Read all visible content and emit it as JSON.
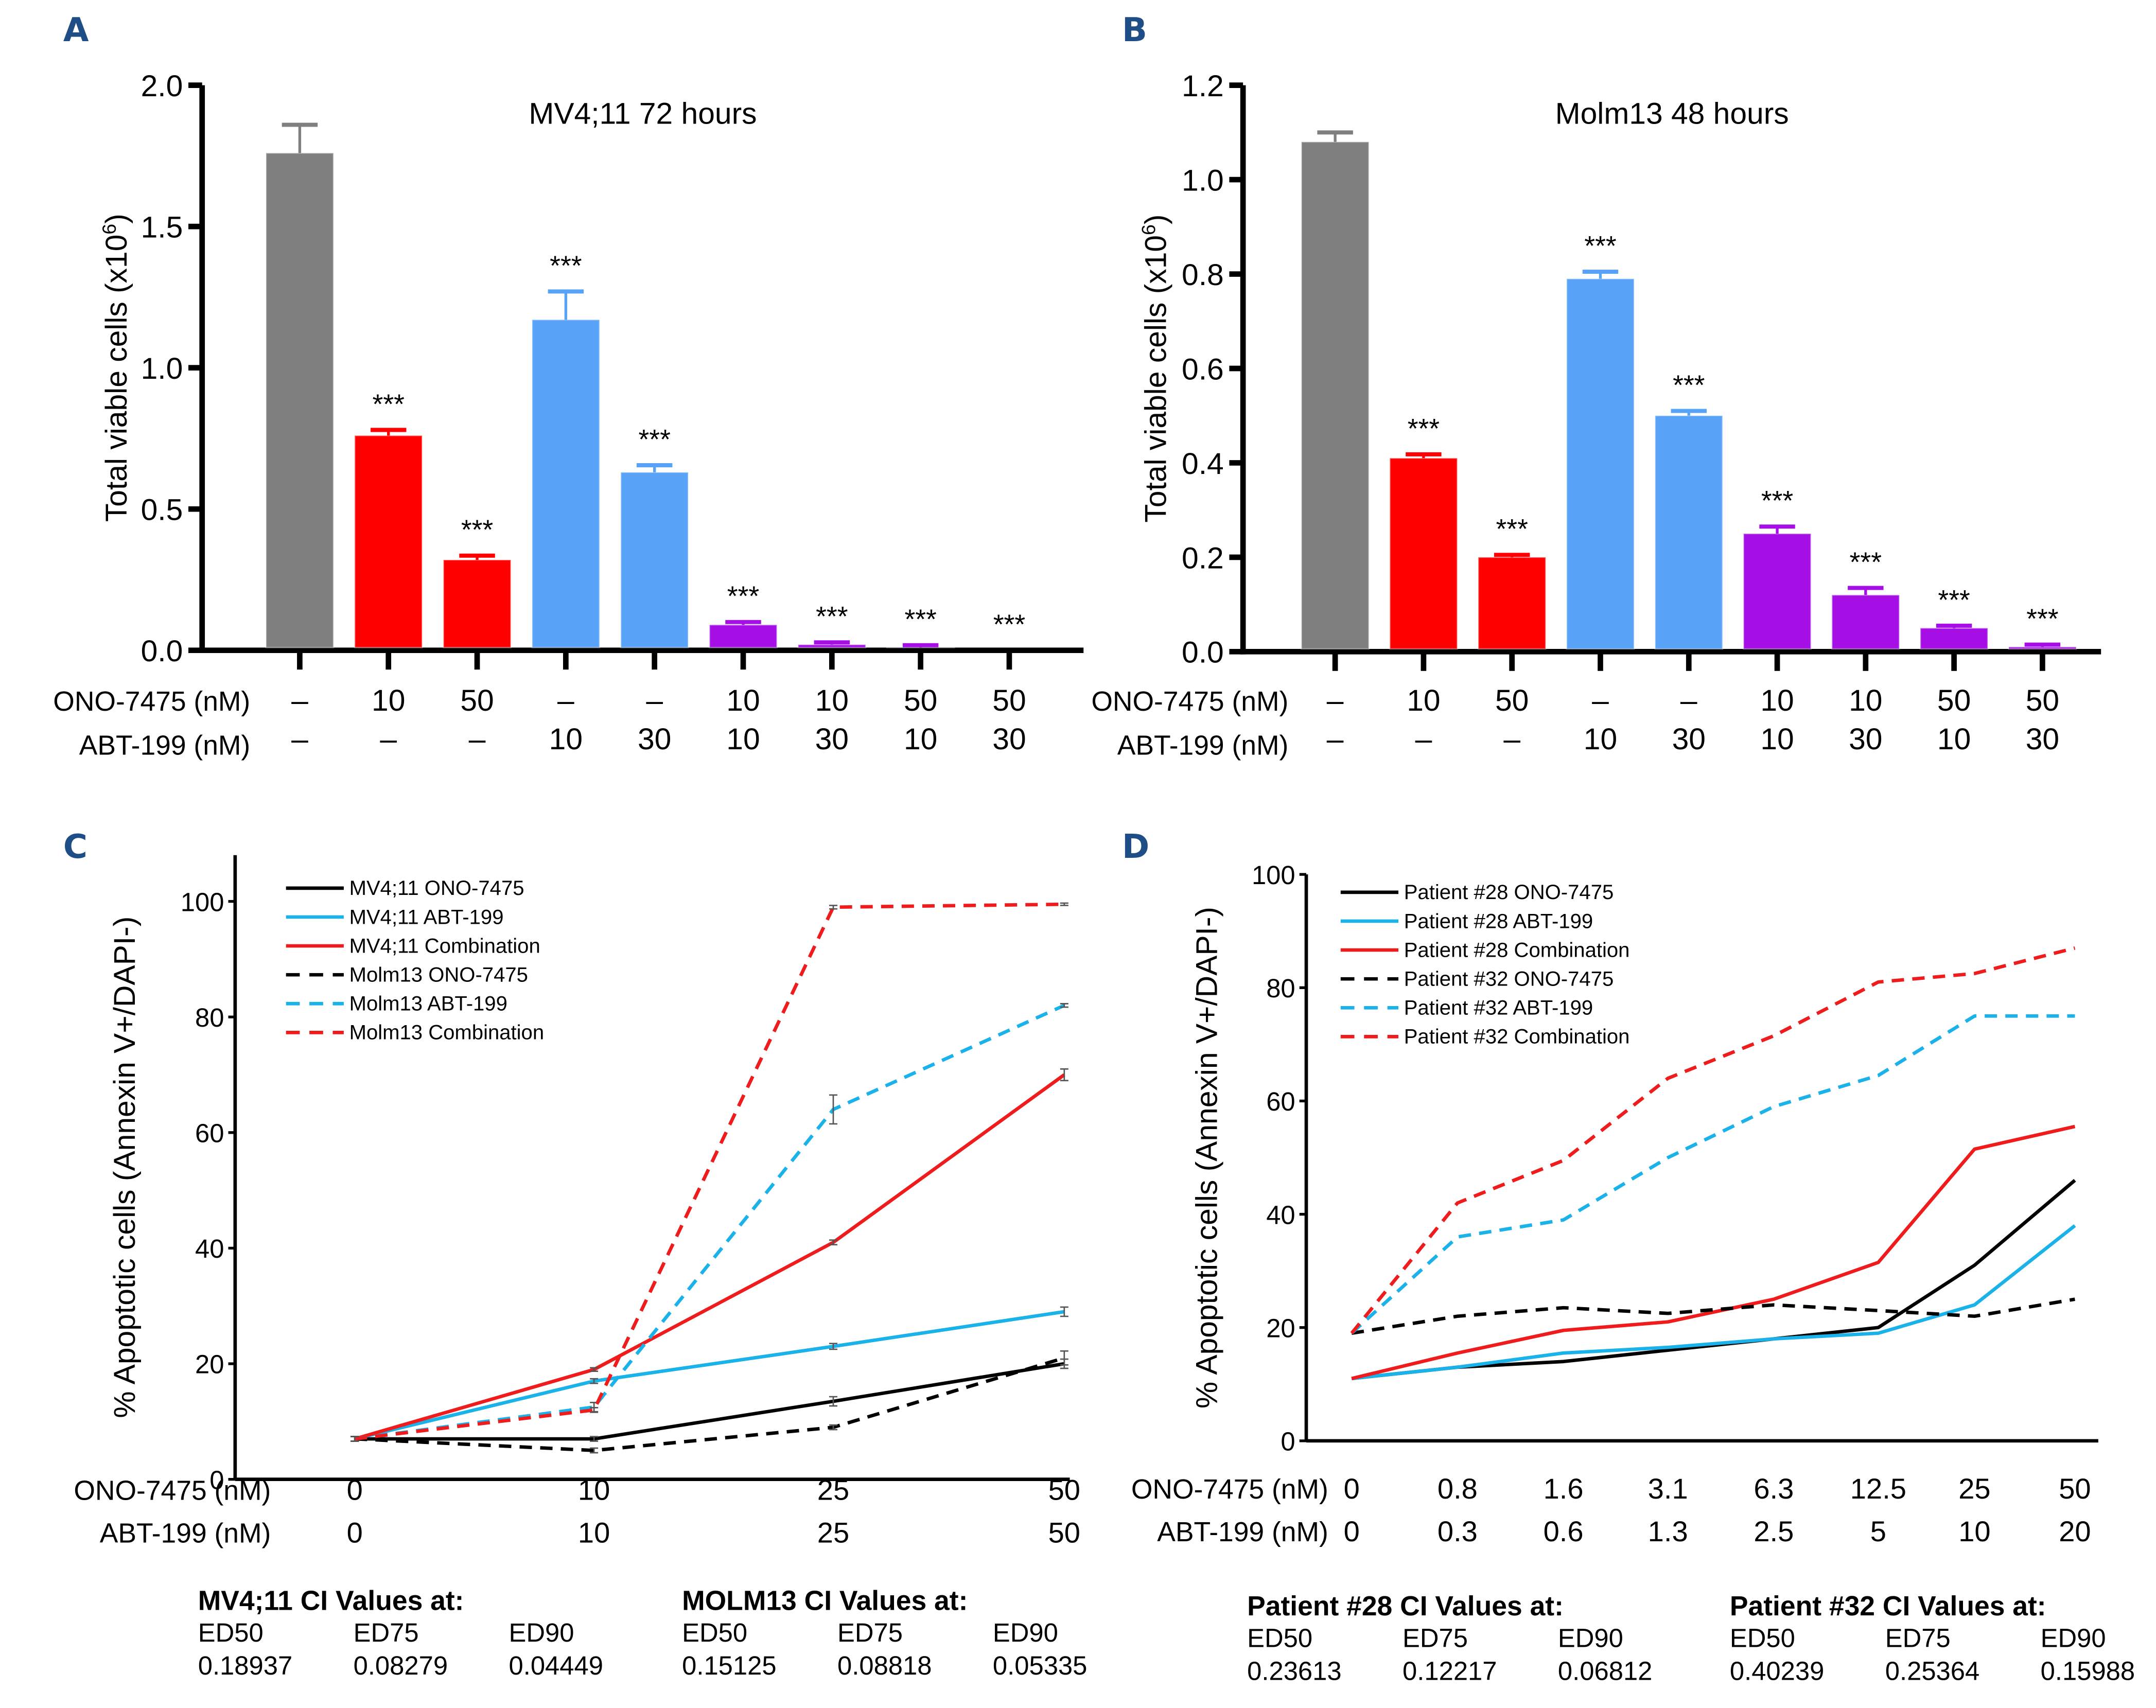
{
  "chart_data": [
    {
      "panel": "A",
      "type": "bar",
      "title": "MV4;11 72 hours",
      "ylabel": "Total viable cells (x10^6)",
      "ylim": [
        0,
        2.0
      ],
      "yticks": [
        "0.0",
        "0.5",
        "1.0",
        "1.5",
        "2.0"
      ],
      "ytick_values": [
        0,
        0.5,
        1.0,
        1.5,
        2.0
      ],
      "row_labels": [
        "ONO-7475 (nM)",
        "ABT-199 (nM)"
      ],
      "ono": [
        "–",
        "10",
        "50",
        "–",
        "–",
        "10",
        "10",
        "50",
        "50"
      ],
      "abt": [
        "–",
        "–",
        "–",
        "10",
        "30",
        "10",
        "30",
        "10",
        "30"
      ],
      "values": [
        1.76,
        0.76,
        0.32,
        1.17,
        0.63,
        0.09,
        0.02,
        0.01,
        0.0
      ],
      "errors": [
        0.1,
        0.02,
        0.015,
        0.1,
        0.025,
        0.01,
        0.008,
        0.008,
        0.0
      ],
      "colors": [
        "#7f7f7f",
        "#ff0000",
        "#ff0000",
        "#58a2f8",
        "#58a2f8",
        "#a60ee6",
        "#a60ee6",
        "#a60ee6",
        "#a60ee6"
      ],
      "significance": [
        "",
        "***",
        "***",
        "***",
        "***",
        "***",
        "***",
        "***",
        "***"
      ]
    },
    {
      "panel": "B",
      "type": "bar",
      "title": "Molm13 48 hours",
      "ylabel": "Total viable cells (x10^6)",
      "ylim": [
        0,
        1.2
      ],
      "yticks": [
        "0.0",
        "0.2",
        "0.4",
        "0.6",
        "0.8",
        "1.0",
        "1.2"
      ],
      "ytick_values": [
        0,
        0.2,
        0.4,
        0.6,
        0.8,
        1.0,
        1.2
      ],
      "row_labels": [
        "ONO-7475 (nM)",
        "ABT-199 (nM)"
      ],
      "ono": [
        "–",
        "10",
        "50",
        "–",
        "–",
        "10",
        "10",
        "50",
        "50"
      ],
      "abt": [
        "–",
        "–",
        "–",
        "10",
        "30",
        "10",
        "30",
        "10",
        "30"
      ],
      "values": [
        1.08,
        0.41,
        0.2,
        0.79,
        0.5,
        0.25,
        0.12,
        0.05,
        0.01
      ],
      "errors": [
        0.02,
        0.008,
        0.005,
        0.015,
        0.01,
        0.015,
        0.015,
        0.005,
        0.005
      ],
      "colors": [
        "#7f7f7f",
        "#ff0000",
        "#ff0000",
        "#58a2f8",
        "#58a2f8",
        "#a60ee6",
        "#a60ee6",
        "#a60ee6",
        "#a60ee6"
      ],
      "significance": [
        "",
        "***",
        "***",
        "***",
        "***",
        "***",
        "***",
        "***",
        "***"
      ]
    },
    {
      "panel": "C",
      "type": "line",
      "ylabel": "% Apoptotic cells (Annexin V+/DAPI-)",
      "ylim": [
        0,
        108
      ],
      "yticks": [
        "0",
        "20",
        "40",
        "60",
        "80",
        "100"
      ],
      "ytick_values": [
        0,
        20,
        40,
        60,
        80,
        100
      ],
      "row_labels": [
        "ONO-7475 (nM)",
        "ABT-199 (nM)"
      ],
      "x_ono": [
        "0",
        "10",
        "25",
        "50"
      ],
      "x_abt": [
        "0",
        "10",
        "25",
        "50"
      ],
      "x": [
        0,
        10,
        25,
        50
      ],
      "legend": "top-left",
      "series": [
        {
          "name": "MV4;11 ONO-7475",
          "color": "#000000",
          "dashed": false,
          "values": [
            7,
            7,
            13.5,
            20
          ],
          "errors": [
            0.4,
            0.4,
            0.8,
            0.8
          ]
        },
        {
          "name": "MV4;11 ABT-199",
          "color": "#1ab2e8",
          "dashed": false,
          "values": [
            7,
            17,
            23,
            29
          ],
          "errors": [
            0.4,
            0.4,
            0.5,
            0.8
          ]
        },
        {
          "name": "MV4;11 Combination",
          "color": "#ee1c1c",
          "dashed": false,
          "values": [
            7,
            19,
            41,
            70
          ],
          "errors": [
            0.4,
            0.3,
            0.4,
            1.0
          ]
        },
        {
          "name": "Molm13 ONO-7475",
          "color": "#000000",
          "dashed": true,
          "values": [
            7,
            5,
            9,
            21
          ],
          "errors": [
            0.4,
            0.4,
            0.4,
            1.2
          ]
        },
        {
          "name": "Molm13 ABT-199",
          "color": "#1ab2e8",
          "dashed": true,
          "values": [
            7,
            12.5,
            64,
            82
          ],
          "errors": [
            0.4,
            0.8,
            2.5,
            0.3
          ]
        },
        {
          "name": "Molm13 Combination",
          "color": "#ee1c1c",
          "dashed": true,
          "values": [
            7,
            12,
            99,
            99.5
          ],
          "errors": [
            0.4,
            0.4,
            0.3,
            0.2
          ]
        }
      ]
    },
    {
      "panel": "D",
      "type": "line",
      "ylabel": "% Apoptotic cells (Annexin V+/DAPI-)",
      "ylim": [
        0,
        100
      ],
      "yticks": [
        "0",
        "20",
        "40",
        "60",
        "80",
        "100"
      ],
      "ytick_values": [
        0,
        20,
        40,
        60,
        80,
        100
      ],
      "row_labels": [
        "ONO-7475 (nM)",
        "ABT-199 (nM)"
      ],
      "x_ono": [
        "0",
        "0.8",
        "1.6",
        "3.1",
        "6.3",
        "12.5",
        "25",
        "50"
      ],
      "x_abt": [
        "0",
        "0.3",
        "0.6",
        "1.3",
        "2.5",
        "5",
        "10",
        "20"
      ],
      "legend": "top-left",
      "series": [
        {
          "name": "Patient #28 ONO-7475",
          "color": "#000000",
          "dashed": false,
          "values": [
            11,
            13,
            14,
            16,
            18,
            20,
            31,
            46
          ]
        },
        {
          "name": "Patient #28 ABT-199",
          "color": "#1ab2e8",
          "dashed": false,
          "values": [
            11,
            13,
            15.5,
            16.5,
            18,
            19,
            24,
            38
          ]
        },
        {
          "name": "Patient #28 Combination",
          "color": "#ee1c1c",
          "dashed": false,
          "values": [
            11,
            15.5,
            19.5,
            21,
            25,
            31.5,
            51.5,
            55.5
          ]
        },
        {
          "name": "Patient #32 ONO-7475",
          "color": "#000000",
          "dashed": true,
          "values": [
            19,
            22,
            23.5,
            22.5,
            24,
            23,
            22,
            25
          ]
        },
        {
          "name": "Patient #32 ABT-199",
          "color": "#1ab2e8",
          "dashed": true,
          "values": [
            19,
            36,
            39,
            50,
            59,
            64.5,
            75,
            75
          ]
        },
        {
          "name": "Patient #32 Combination",
          "color": "#ee1c1c",
          "dashed": true,
          "values": [
            19,
            42,
            49.5,
            64,
            71.5,
            81,
            82.5,
            87
          ]
        }
      ]
    }
  ],
  "panels": {
    "A": "A",
    "B": "B",
    "C": "C",
    "D": "D"
  },
  "ci_tables": [
    {
      "title": "MV4;11 CI Values at:",
      "headers": [
        "ED50",
        "ED75",
        "ED90"
      ],
      "values": [
        "0.18937",
        "0.08279",
        "0.04449"
      ]
    },
    {
      "title": "MOLM13 CI Values at:",
      "headers": [
        "ED50",
        "ED75",
        "ED90"
      ],
      "values": [
        "0.15125",
        "0.08818",
        "0.05335"
      ]
    },
    {
      "title": "Patient #28 CI Values at:",
      "headers": [
        "ED50",
        "ED75",
        "ED90"
      ],
      "values": [
        "0.23613",
        "0.12217",
        "0.06812"
      ]
    },
    {
      "title": "Patient #32 CI Values at:",
      "headers": [
        "ED50",
        "ED75",
        "ED90"
      ],
      "values": [
        "0.40239",
        "0.25364",
        "0.15988"
      ]
    }
  ]
}
